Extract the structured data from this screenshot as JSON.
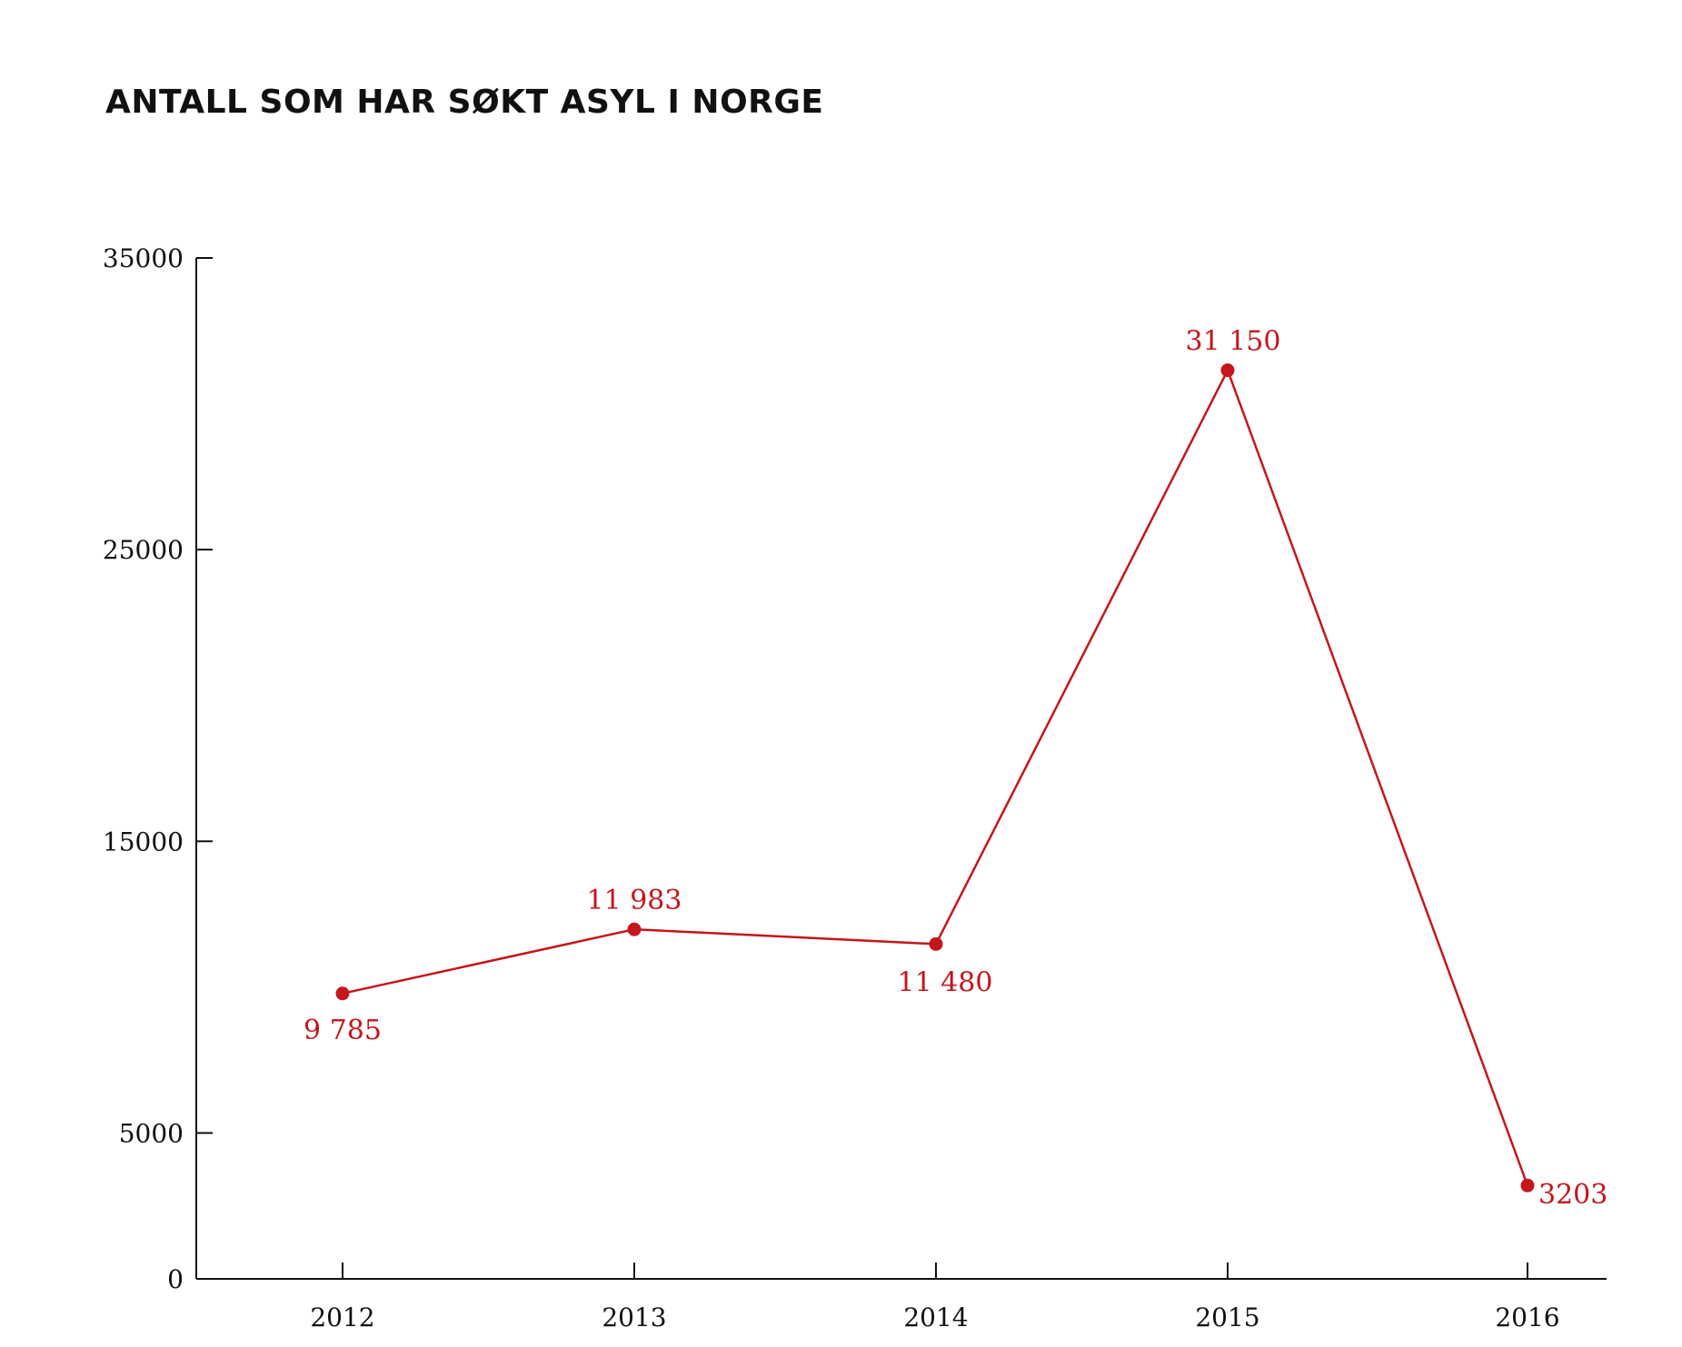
{
  "chart_data": {
    "type": "line",
    "title": "ANTALL SOM HAR SØKT ASYL I NORGE",
    "xlabel": "",
    "ylabel": "",
    "categories": [
      "2012",
      "2013",
      "2014",
      "2015",
      "2016"
    ],
    "series": [
      {
        "values": [
          9785,
          11983,
          11480,
          31150,
          3203
        ],
        "labels": [
          "9 785",
          "11 983",
          "11 480",
          "31 150",
          "3203"
        ]
      }
    ],
    "ylim": [
      0,
      35000
    ],
    "yticks": [
      0,
      5000,
      15000,
      25000,
      35000
    ],
    "ytick_labels": [
      "0",
      "5000",
      "15000",
      "25000",
      "35000"
    ],
    "grid": false,
    "legend": "none",
    "colors": {
      "line": "#c4161c",
      "axis": "#111111",
      "title": "#111111"
    }
  }
}
